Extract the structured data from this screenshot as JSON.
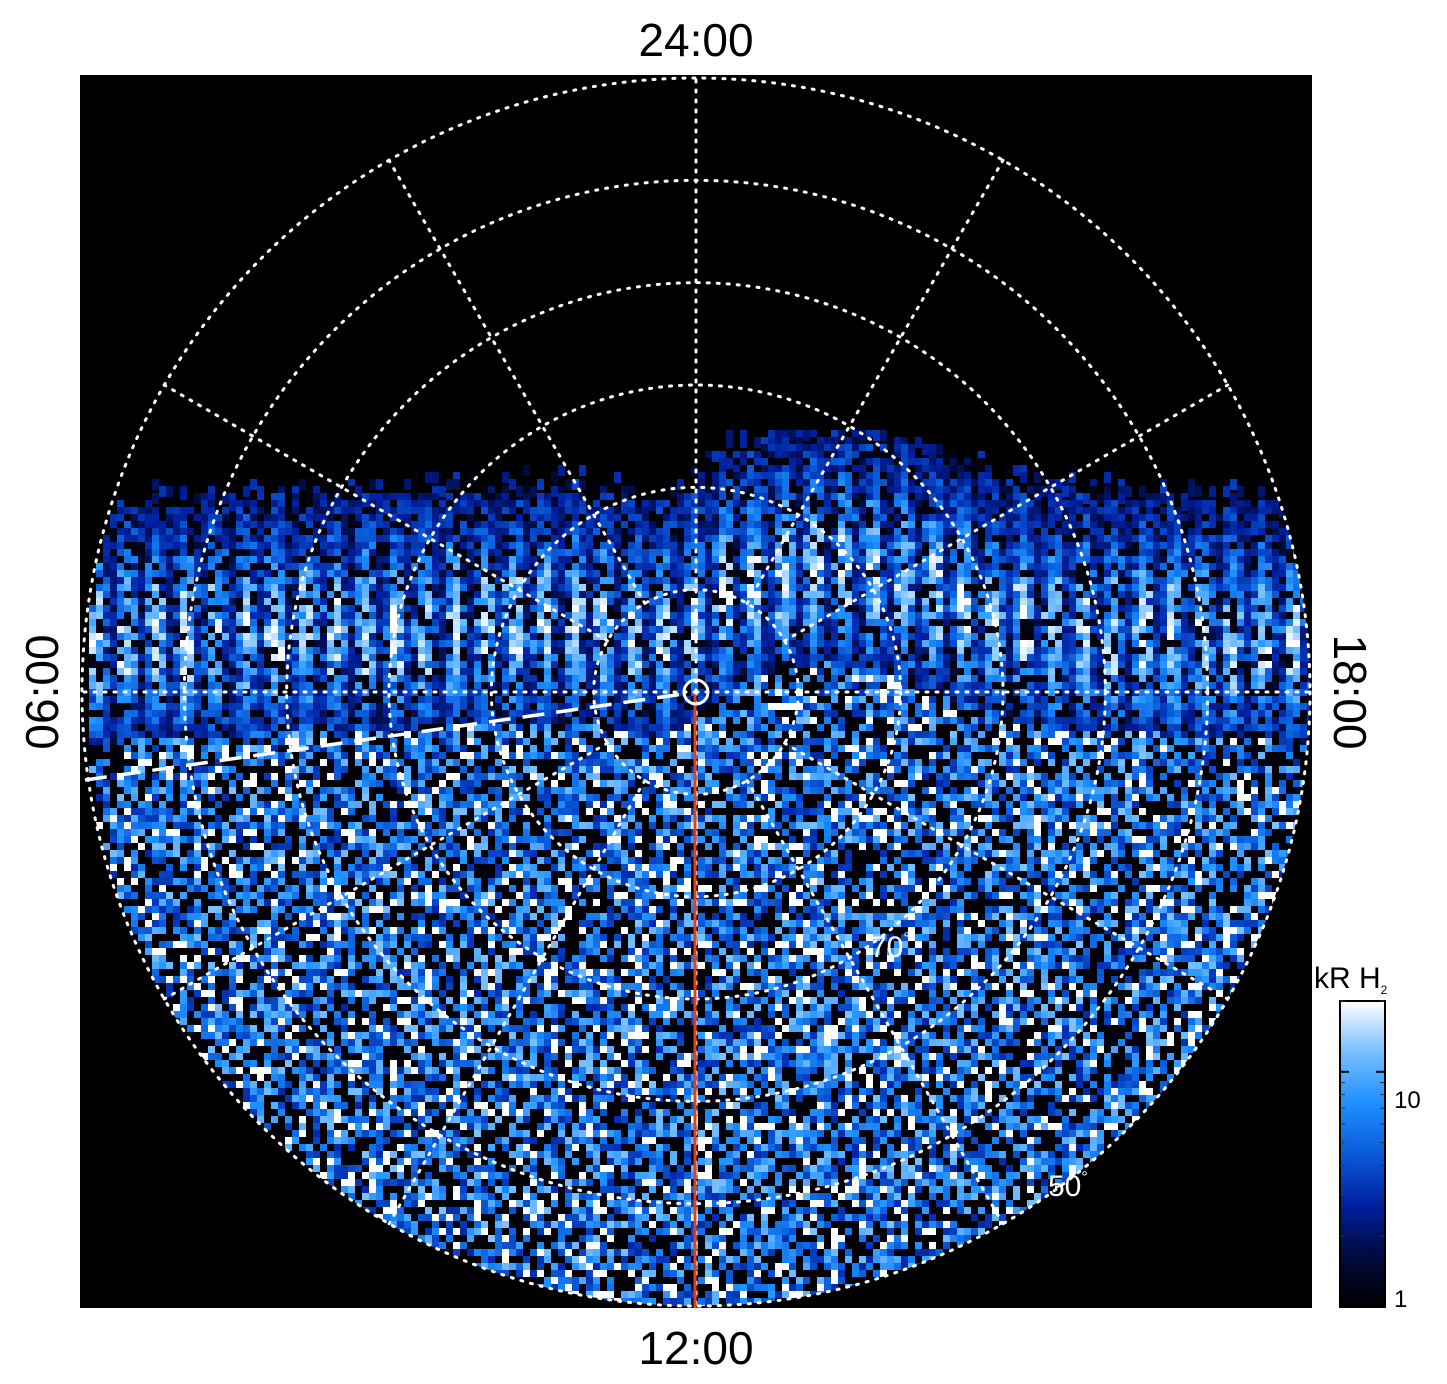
{
  "chart_data": {
    "type": "heatmap",
    "projection": "polar",
    "local_time_labels": {
      "top": "24:00",
      "bottom": "12:00",
      "left": "06:00",
      "right": "18:00"
    },
    "latitude_labels": [
      {
        "text": "70",
        "unit": "°",
        "latitude": 70
      },
      {
        "text": "50",
        "unit": "°",
        "latitude": 50
      }
    ],
    "latitude_circles": [
      80,
      70,
      60,
      50,
      40
    ],
    "meridian_spacing_hours": 2,
    "colorbar": {
      "title": "kR H",
      "title_subscript": "2",
      "scale": "log",
      "range": [
        1,
        20
      ],
      "ticks": [
        {
          "value": 1,
          "label": "1"
        },
        {
          "value": 10,
          "label": "10"
        }
      ],
      "colormap": [
        "#000000",
        "#000a3c",
        "#0020a0",
        "#0a5ad8",
        "#1e90ff",
        "#78bfff",
        "#ffffff"
      ]
    },
    "colors": {
      "background": "#000000",
      "grid": "#ffffff",
      "meridian_12": "#e0401a",
      "terminator": "#ffffff"
    },
    "features": {
      "auroral_oval": "bright emission band on the nightside",
      "observed_region": "dayside noise-like emission",
      "noon_meridian": "red line from pole to 12:00",
      "terminator": "white dashed line on dawn side",
      "pole_marker": "circle-dot at pole"
    }
  }
}
